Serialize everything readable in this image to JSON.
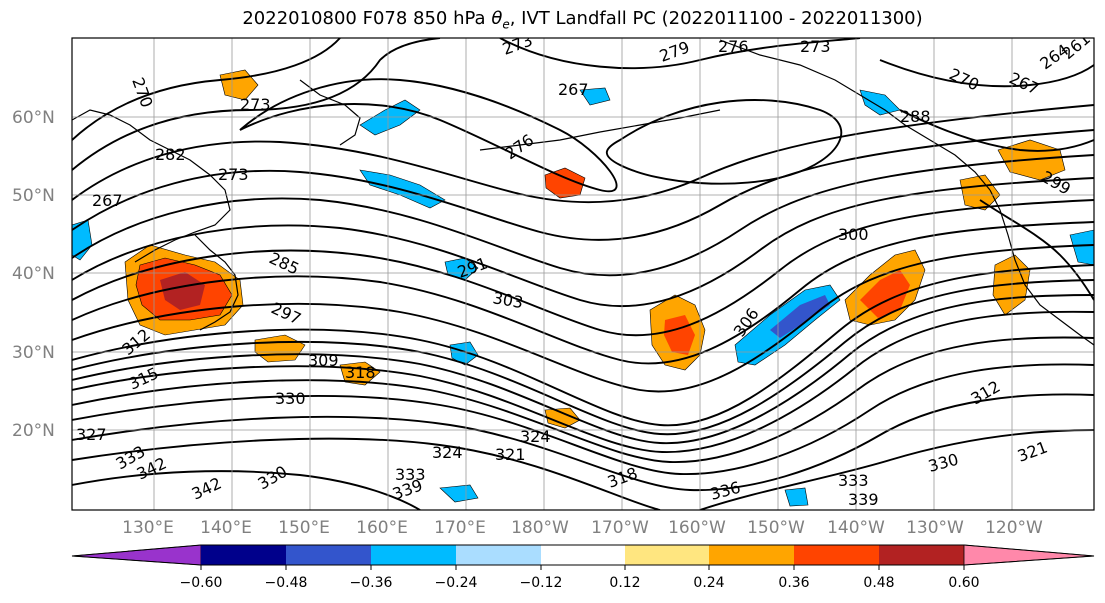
{
  "title": {
    "prefix": "2022010800 F078 850 hPa ",
    "theta_symbol": "θ",
    "theta_sub": "e",
    "suffix": ", IVT Landfall PC (2022011100 - 2022011300)"
  },
  "lat_labels": [
    "60°N",
    "50°N",
    "40°N",
    "30°N",
    "20°N"
  ],
  "lon_labels": [
    "130°E",
    "140°E",
    "150°E",
    "160°E",
    "170°E",
    "180°W",
    "170°W",
    "160°W",
    "150°W",
    "140°W",
    "130°W",
    "120°W"
  ],
  "contour_labels": [
    "270",
    "273",
    "273",
    "276",
    "279",
    "276",
    "273",
    "270",
    "267",
    "264",
    "261",
    "267",
    "282",
    "273",
    "267",
    "288",
    "291",
    "285",
    "297",
    "303",
    "300",
    "306",
    "309",
    "312",
    "318",
    "330",
    "327",
    "333",
    "342",
    "324",
    "321",
    "339",
    "336",
    "333",
    "339",
    "330",
    "342",
    "315",
    "324",
    "321",
    "299",
    "318",
    "312",
    "330",
    "333"
  ],
  "colorbar": {
    "colors": [
      "#9933cc",
      "#00008b",
      "#3355cc",
      "#00bbff",
      "#aaddff",
      "#ffffff",
      "#ffe680",
      "#ffa500",
      "#ff4400",
      "#b22222",
      "#ff88aa"
    ],
    "ticks": [
      "−0.60",
      "−0.48",
      "−0.36",
      "−0.24",
      "−0.12",
      "0.12",
      "0.24",
      "0.36",
      "0.48",
      "0.60"
    ]
  },
  "colors": {
    "contour": "#000000",
    "grid": "#999999",
    "coast": "#000000"
  }
}
